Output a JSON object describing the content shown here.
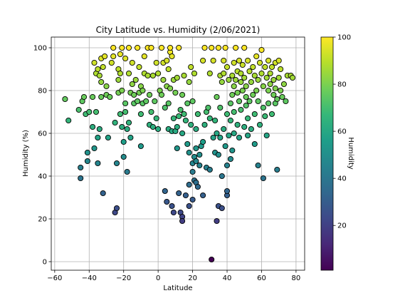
{
  "chart_data": {
    "type": "scatter",
    "title": "City Latitude vs. Humidity (2/06/2021)",
    "xlabel": "Latitude",
    "ylabel": "Humidity (%)",
    "xlim": [
      -62,
      85
    ],
    "ylim": [
      -4,
      105
    ],
    "xticks": [
      -60,
      -40,
      -20,
      0,
      20,
      40,
      60,
      80
    ],
    "yticks": [
      0,
      20,
      40,
      60,
      80,
      100
    ],
    "grid": true,
    "colorbar": {
      "label": "Humidity",
      "colormap": "viridis",
      "range": [
        1,
        100
      ],
      "ticks": [
        20,
        40,
        60,
        80,
        100
      ]
    },
    "colormap_stops": [
      "#440154",
      "#482878",
      "#3e4989",
      "#31688e",
      "#26828e",
      "#1f9e89",
      "#35b779",
      "#6ece58",
      "#b5de2b",
      "#fde725"
    ],
    "points": [
      [
        -54,
        76
      ],
      [
        -52,
        66
      ],
      [
        -46,
        71
      ],
      [
        -45,
        44
      ],
      [
        -45,
        39
      ],
      [
        -44,
        75
      ],
      [
        -43,
        77
      ],
      [
        -42,
        69
      ],
      [
        -41,
        51
      ],
      [
        -41,
        47
      ],
      [
        -40,
        70
      ],
      [
        -38,
        63
      ],
      [
        -38,
        77
      ],
      [
        -37,
        93
      ],
      [
        -37,
        53
      ],
      [
        -36,
        88
      ],
      [
        -36,
        70
      ],
      [
        -35,
        90
      ],
      [
        -35,
        58
      ],
      [
        -35,
        46
      ],
      [
        -34,
        62
      ],
      [
        -34,
        87
      ],
      [
        -33,
        95
      ],
      [
        -33,
        84
      ],
      [
        -33,
        77
      ],
      [
        -32,
        32
      ],
      [
        -32,
        91
      ],
      [
        -31,
        96
      ],
      [
        -30,
        78
      ],
      [
        -30,
        82
      ],
      [
        -29,
        58
      ],
      [
        -28,
        77
      ],
      [
        -27,
        93
      ],
      [
        -26,
        100
      ],
      [
        -26,
        96
      ],
      [
        -25,
        23
      ],
      [
        -25,
        65
      ],
      [
        -24,
        25
      ],
      [
        -24,
        46
      ],
      [
        -23,
        90
      ],
      [
        -23,
        85
      ],
      [
        -23,
        79
      ],
      [
        -22,
        97
      ],
      [
        -22,
        88
      ],
      [
        -22,
        69
      ],
      [
        -21,
        63
      ],
      [
        -21,
        80
      ],
      [
        -21,
        100
      ],
      [
        -20,
        49
      ],
      [
        -20,
        56
      ],
      [
        -19,
        95
      ],
      [
        -19,
        74
      ],
      [
        -19,
        70
      ],
      [
        -18,
        42
      ],
      [
        -18,
        62
      ],
      [
        -17,
        100
      ],
      [
        -17,
        88
      ],
      [
        -17,
        65
      ],
      [
        -16,
        79
      ],
      [
        -16,
        58
      ],
      [
        -15,
        93
      ],
      [
        -15,
        83
      ],
      [
        -14,
        78
      ],
      [
        -14,
        74
      ],
      [
        -13,
        85
      ],
      [
        -12,
        75
      ],
      [
        -12,
        100
      ],
      [
        -11,
        91
      ],
      [
        -11,
        79
      ],
      [
        -10,
        82
      ],
      [
        -10,
        54
      ],
      [
        -10,
        69
      ],
      [
        -9,
        74
      ],
      [
        -9,
        80
      ],
      [
        -8,
        96
      ],
      [
        -8,
        88
      ],
      [
        -7,
        75
      ],
      [
        -6,
        87
      ],
      [
        -6,
        100
      ],
      [
        -5,
        64
      ],
      [
        -5,
        78
      ],
      [
        -4,
        70
      ],
      [
        -4,
        100
      ],
      [
        -3,
        87
      ],
      [
        -3,
        63
      ],
      [
        -2,
        75
      ],
      [
        -1,
        67
      ],
      [
        -1,
        93
      ],
      [
        0,
        88
      ],
      [
        0,
        62
      ],
      [
        1,
        80
      ],
      [
        2,
        100
      ],
      [
        2,
        78
      ],
      [
        3,
        93
      ],
      [
        3,
        85
      ],
      [
        4,
        33
      ],
      [
        4,
        72
      ],
      [
        5,
        28
      ],
      [
        5,
        94
      ],
      [
        5,
        82
      ],
      [
        6,
        90
      ],
      [
        6,
        74
      ],
      [
        6,
        62
      ],
      [
        7,
        98
      ],
      [
        7,
        100
      ],
      [
        7,
        81
      ],
      [
        8,
        26
      ],
      [
        8,
        61
      ],
      [
        8,
        96
      ],
      [
        9,
        23
      ],
      [
        9,
        85
      ],
      [
        9,
        67
      ],
      [
        10,
        79
      ],
      [
        10,
        61
      ],
      [
        11,
        53
      ],
      [
        11,
        86
      ],
      [
        11,
        63
      ],
      [
        12,
        32
      ],
      [
        12,
        100
      ],
      [
        12,
        68
      ],
      [
        13,
        23
      ],
      [
        13,
        71
      ],
      [
        14,
        21
      ],
      [
        14,
        19
      ],
      [
        14,
        78
      ],
      [
        14,
        60
      ],
      [
        15,
        69
      ],
      [
        15,
        87
      ],
      [
        16,
        31
      ],
      [
        16,
        66
      ],
      [
        17,
        74
      ],
      [
        17,
        55
      ],
      [
        18,
        51
      ],
      [
        18,
        26
      ],
      [
        18,
        36
      ],
      [
        18,
        84
      ],
      [
        19,
        91
      ],
      [
        19,
        64
      ],
      [
        20,
        29
      ],
      [
        20,
        42
      ],
      [
        20,
        46
      ],
      [
        20,
        75
      ],
      [
        21,
        38
      ],
      [
        21,
        49
      ],
      [
        21,
        88
      ],
      [
        22,
        37
      ],
      [
        22,
        47
      ],
      [
        22,
        53
      ],
      [
        22,
        62
      ],
      [
        23,
        35
      ],
      [
        23,
        69
      ],
      [
        24,
        50
      ],
      [
        24,
        45
      ],
      [
        25,
        54
      ],
      [
        26,
        31
      ],
      [
        26,
        56
      ],
      [
        26,
        94
      ],
      [
        27,
        100
      ],
      [
        27,
        64
      ],
      [
        28,
        70
      ],
      [
        28,
        44
      ],
      [
        29,
        72
      ],
      [
        30,
        43
      ],
      [
        30,
        67
      ],
      [
        30,
        88
      ],
      [
        31,
        1
      ],
      [
        31,
        100
      ],
      [
        32,
        58
      ],
      [
        32,
        94
      ],
      [
        33,
        66
      ],
      [
        33,
        51
      ],
      [
        34,
        19
      ],
      [
        34,
        77
      ],
      [
        34,
        60
      ],
      [
        35,
        26
      ],
      [
        35,
        50
      ],
      [
        35,
        100
      ],
      [
        36,
        87
      ],
      [
        36,
        72
      ],
      [
        36,
        58
      ],
      [
        37,
        40
      ],
      [
        37,
        25
      ],
      [
        37,
        84
      ],
      [
        38,
        88
      ],
      [
        38,
        94
      ],
      [
        38,
        62
      ],
      [
        39,
        54
      ],
      [
        39,
        100
      ],
      [
        40,
        31
      ],
      [
        40,
        33
      ],
      [
        40,
        45
      ],
      [
        40,
        91
      ],
      [
        40,
        69
      ],
      [
        41,
        85
      ],
      [
        41,
        59
      ],
      [
        42,
        74
      ],
      [
        42,
        66
      ],
      [
        42,
        48
      ],
      [
        43,
        87
      ],
      [
        43,
        78
      ],
      [
        43,
        52
      ],
      [
        44,
        93
      ],
      [
        44,
        82
      ],
      [
        44,
        70
      ],
      [
        44,
        60
      ],
      [
        45,
        85
      ],
      [
        45,
        100
      ],
      [
        46,
        89
      ],
      [
        46,
        79
      ],
      [
        46,
        64
      ],
      [
        47,
        94
      ],
      [
        47,
        75
      ],
      [
        47,
        58
      ],
      [
        48,
        88
      ],
      [
        48,
        84
      ],
      [
        48,
        71
      ],
      [
        49,
        92
      ],
      [
        49,
        80
      ],
      [
        50,
        100
      ],
      [
        50,
        86
      ],
      [
        50,
        63
      ],
      [
        51,
        82
      ],
      [
        51,
        77
      ],
      [
        51,
        73
      ],
      [
        52,
        94
      ],
      [
        52,
        67
      ],
      [
        52,
        59
      ],
      [
        53,
        89
      ],
      [
        53,
        75
      ],
      [
        54,
        84
      ],
      [
        54,
        62
      ],
      [
        55,
        91
      ],
      [
        55,
        78
      ],
      [
        56,
        87
      ],
      [
        56,
        69
      ],
      [
        56,
        55
      ],
      [
        57,
        96
      ],
      [
        57,
        80
      ],
      [
        58,
        45
      ],
      [
        58,
        85
      ],
      [
        58,
        75
      ],
      [
        59,
        93
      ],
      [
        59,
        64
      ],
      [
        60,
        99
      ],
      [
        60,
        88
      ],
      [
        61,
        39
      ],
      [
        61,
        82
      ],
      [
        61,
        72
      ],
      [
        62,
        91
      ],
      [
        62,
        68
      ],
      [
        63,
        86
      ],
      [
        63,
        59
      ],
      [
        64,
        94
      ],
      [
        64,
        80
      ],
      [
        64,
        74
      ],
      [
        65,
        88
      ],
      [
        65,
        83
      ],
      [
        66,
        91
      ],
      [
        66,
        69
      ],
      [
        67,
        85
      ],
      [
        67,
        78
      ],
      [
        68,
        93
      ],
      [
        68,
        81
      ],
      [
        68,
        74
      ],
      [
        69,
        43
      ],
      [
        69,
        76
      ],
      [
        70,
        86
      ],
      [
        70,
        94
      ],
      [
        71,
        90
      ],
      [
        71,
        80
      ],
      [
        72,
        77
      ],
      [
        73,
        83
      ],
      [
        74,
        75
      ],
      [
        75,
        87
      ],
      [
        77,
        87
      ],
      [
        78,
        86
      ]
    ]
  }
}
